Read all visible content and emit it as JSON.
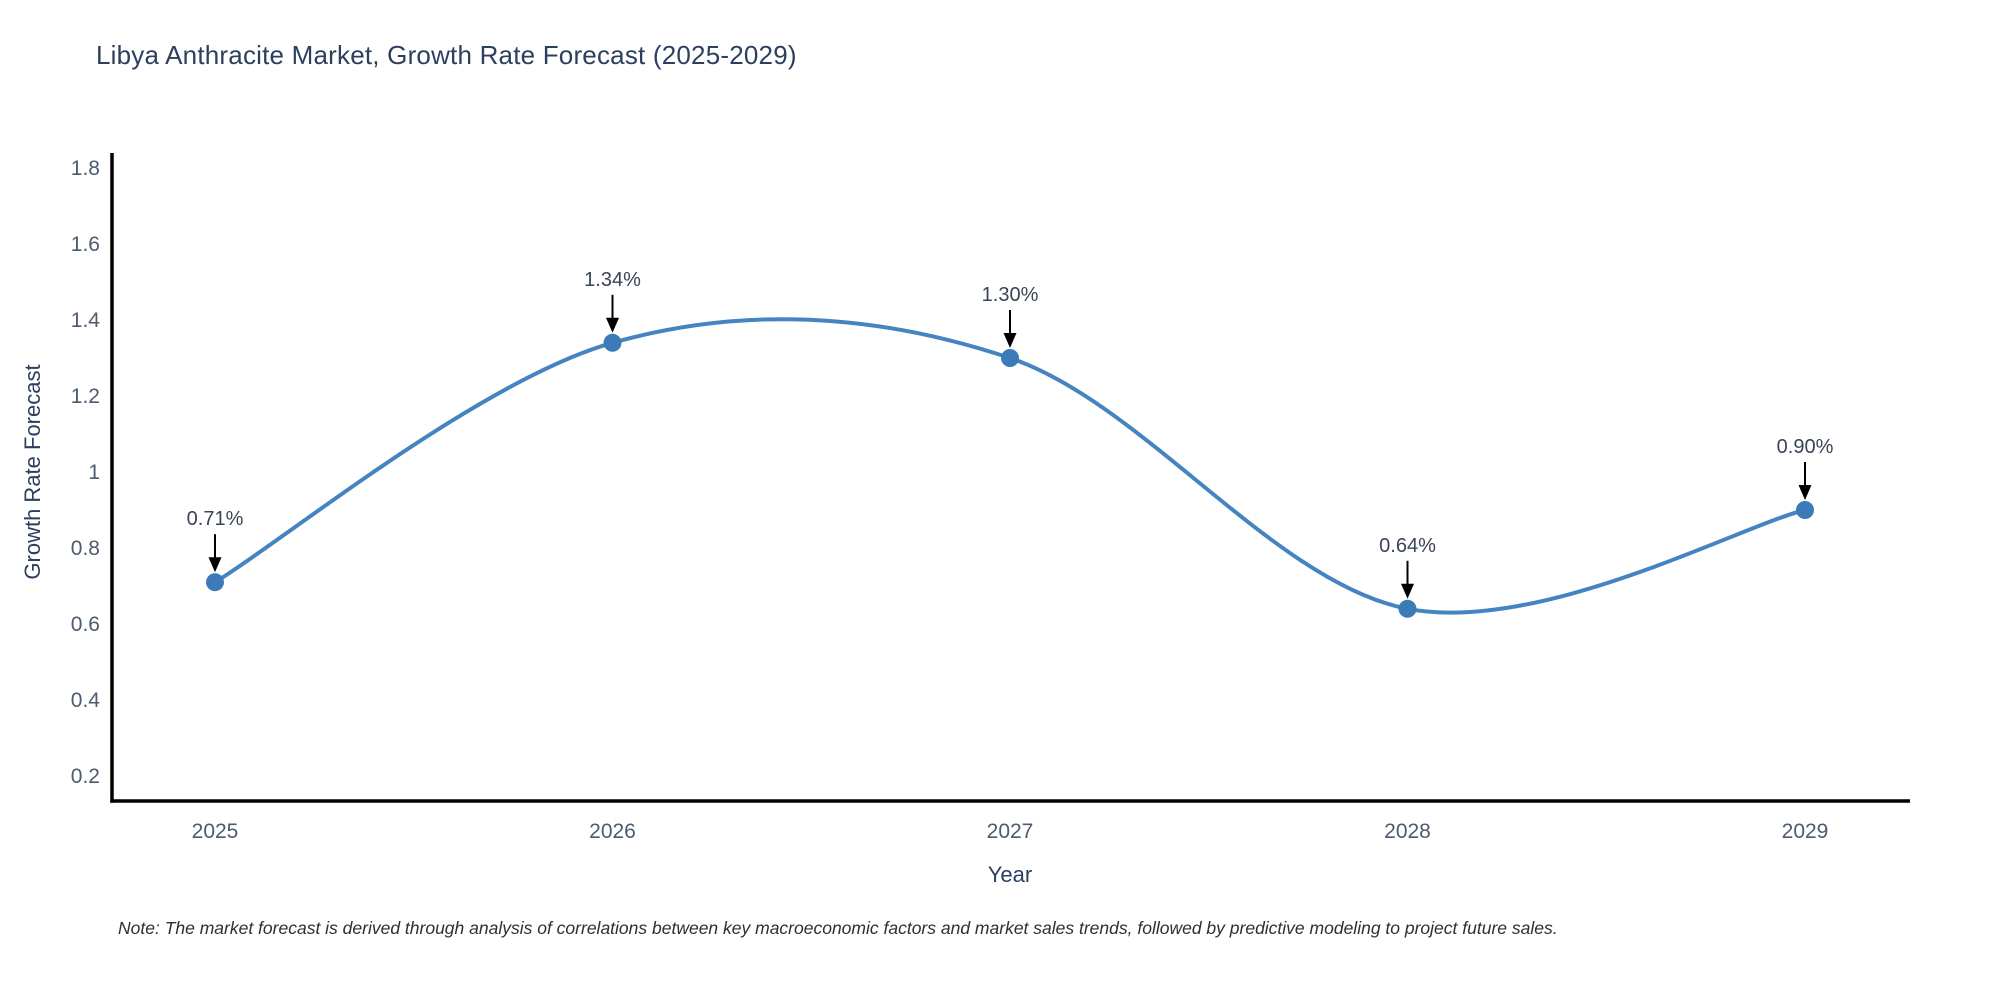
{
  "chart_data": {
    "type": "line",
    "line_shape": "spline",
    "title": "Libya Anthracite Market, Growth Rate Forecast (2025-2029)",
    "xlabel": "Year",
    "ylabel": "Growth Rate Forecast",
    "x": [
      2025,
      2026,
      2027,
      2028,
      2029
    ],
    "xtick_labels": [
      "2025",
      "2026",
      "2027",
      "2028",
      "2029"
    ],
    "values": [
      0.71,
      1.34,
      1.3,
      0.64,
      0.9
    ],
    "point_labels": [
      "0.71%",
      "1.34%",
      "1.30%",
      "0.64%",
      "0.90%"
    ],
    "yticks": [
      0.2,
      0.4,
      0.6,
      0.8,
      1,
      1.2,
      1.4,
      1.6,
      1.8
    ],
    "ytick_labels": [
      "0.2",
      "0.4",
      "0.6",
      "0.8",
      "1",
      "1.2",
      "1.4",
      "1.6",
      "1.8"
    ],
    "ylim": [
      0.1,
      1.9
    ],
    "grid": false,
    "legend": false,
    "annotations": "each data point labeled with percent value and a downward black arrow"
  },
  "footer": {
    "note": "Note: The market forecast is derived through analysis of correlations between key macroeconomic factors and market sales trends, followed by predictive modeling to project future sales."
  },
  "colors": {
    "line": "#4584c0",
    "marker": "#3d7bb8",
    "arrow": "#000000",
    "axis_line": "#000000",
    "title_text": "#2d3f5e",
    "tick_text": "#4c5b70",
    "annotation_text": "#3a4455",
    "note_text": "#2f2f2f"
  }
}
